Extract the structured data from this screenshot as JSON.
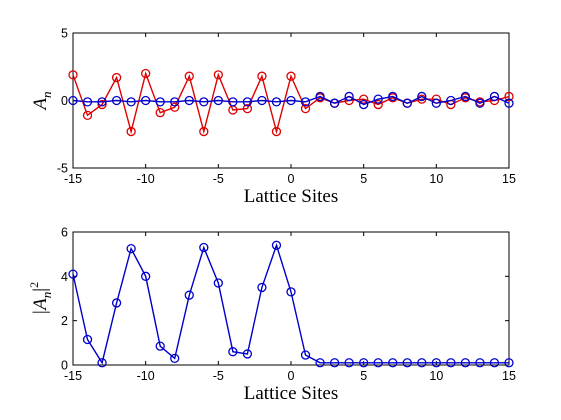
{
  "chart_data": [
    {
      "type": "line",
      "xlabel": "Lattice Sites",
      "ylabel_base": "A",
      "ylabel_sub": "n",
      "xlim": [
        -15,
        15
      ],
      "ylim": [
        -5,
        5
      ],
      "xticks": [
        "-15",
        "-10",
        "-5",
        "0",
        "5",
        "10",
        "15"
      ],
      "yticks": [
        "-5",
        "0",
        "5"
      ],
      "grid": false,
      "series": [
        {
          "color": "#e00000",
          "marker": "circle",
          "x": [
            -15,
            -14,
            -13,
            -12,
            -11,
            -10,
            -9,
            -8,
            -7,
            -6,
            -5,
            -4,
            -3,
            -2,
            -1,
            0,
            1,
            2,
            3,
            4,
            5,
            6,
            7,
            8,
            9,
            10,
            11,
            12,
            13,
            14,
            15
          ],
          "y": [
            1.9,
            -1.1,
            -0.3,
            1.7,
            -2.3,
            2.0,
            -0.9,
            -0.5,
            1.8,
            -2.3,
            1.9,
            -0.7,
            -0.6,
            1.8,
            -2.3,
            1.8,
            -0.6,
            0.2,
            -0.2,
            0.0,
            0.1,
            -0.3,
            0.2,
            -0.2,
            0.1,
            0.1,
            -0.3,
            0.2,
            -0.1,
            0.0,
            0.3
          ]
        },
        {
          "color": "#0000cc",
          "marker": "circle",
          "x": [
            -15,
            -14,
            -13,
            -12,
            -11,
            -10,
            -9,
            -8,
            -7,
            -6,
            -5,
            -4,
            -3,
            -2,
            -1,
            0,
            1,
            2,
            3,
            4,
            5,
            6,
            7,
            8,
            9,
            10,
            11,
            12,
            13,
            14,
            15
          ],
          "y": [
            0.0,
            -0.1,
            -0.1,
            0.0,
            -0.1,
            0.0,
            -0.1,
            -0.1,
            0.0,
            -0.1,
            0.0,
            -0.1,
            -0.1,
            0.0,
            -0.1,
            0.0,
            -0.1,
            0.3,
            -0.2,
            0.3,
            -0.3,
            0.1,
            0.3,
            -0.2,
            0.3,
            -0.2,
            0.0,
            0.3,
            -0.2,
            0.3,
            -0.2
          ]
        }
      ]
    },
    {
      "type": "line",
      "xlabel": "Lattice Sites",
      "ylabel_base": "|A",
      "ylabel_sub": "n",
      "ylabel_tail": "|",
      "ylabel_sup": "2",
      "xlim": [
        -15,
        15
      ],
      "ylim": [
        0,
        6
      ],
      "xticks": [
        "-15",
        "-10",
        "-5",
        "0",
        "5",
        "10",
        "15"
      ],
      "yticks": [
        "0",
        "2",
        "4",
        "6"
      ],
      "grid": false,
      "series": [
        {
          "color": "#0000cc",
          "marker": "circle",
          "x": [
            -15,
            -14,
            -13,
            -12,
            -11,
            -10,
            -9,
            -8,
            -7,
            -6,
            -5,
            -4,
            -3,
            -2,
            -1,
            0,
            1,
            2,
            3,
            4,
            5,
            6,
            7,
            8,
            9,
            10,
            11,
            12,
            13,
            14,
            15
          ],
          "y": [
            4.1,
            1.15,
            0.1,
            2.8,
            5.25,
            4.0,
            0.85,
            0.3,
            3.15,
            5.3,
            3.7,
            0.6,
            0.5,
            3.5,
            5.4,
            3.3,
            0.45,
            0.1,
            0.1,
            0.1,
            0.1,
            0.1,
            0.1,
            0.1,
            0.1,
            0.1,
            0.1,
            0.1,
            0.1,
            0.1,
            0.1
          ]
        }
      ]
    }
  ]
}
